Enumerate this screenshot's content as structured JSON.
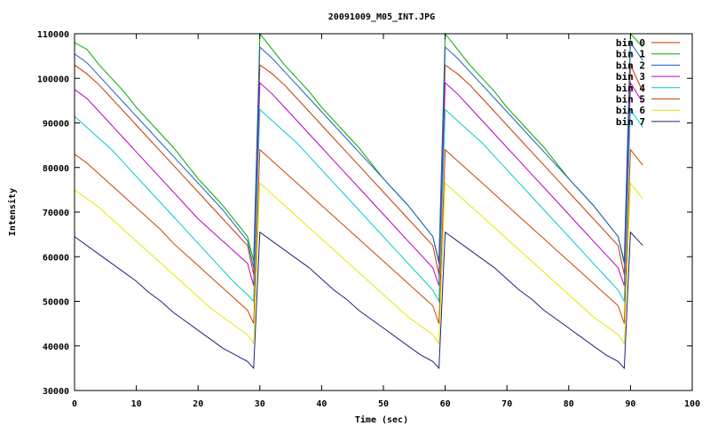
{
  "chart_data": {
    "type": "line",
    "title": "20091009_M05_INT.JPG",
    "xlabel": "Time (sec)",
    "ylabel": "Intensity",
    "xlim": [
      0,
      100
    ],
    "ylim": [
      30000,
      110000
    ],
    "x_ticks": [
      0,
      10,
      20,
      30,
      40,
      50,
      60,
      70,
      80,
      90,
      100
    ],
    "y_ticks": [
      30000,
      40000,
      50000,
      60000,
      70000,
      80000,
      90000,
      100000,
      110000
    ],
    "grid": false,
    "legend_position": "top-right",
    "series": [
      {
        "name": "bin 0",
        "color": "#cc3300",
        "x": [
          0,
          2,
          4,
          6,
          8,
          10,
          12,
          14,
          16,
          18,
          20,
          22,
          24,
          26,
          28,
          29,
          30,
          32,
          34,
          36,
          38,
          40,
          42,
          44,
          46,
          48,
          50,
          52,
          54,
          56,
          58,
          59,
          60,
          62,
          64,
          66,
          68,
          70,
          72,
          74,
          76,
          78,
          80,
          82,
          84,
          86,
          88,
          89,
          90,
          92
        ],
        "y": [
          103000,
          101000,
          98500,
          95500,
          92500,
          89500,
          86500,
          83500,
          80500,
          77500,
          74500,
          71500,
          68500,
          65500,
          62500,
          56000,
          103000,
          101000,
          98500,
          95500,
          92500,
          89500,
          86500,
          83500,
          80500,
          77500,
          74500,
          71500,
          68500,
          65500,
          62500,
          56000,
          103000,
          101000,
          98500,
          95500,
          92500,
          89500,
          86500,
          83500,
          80500,
          77500,
          74500,
          71500,
          68500,
          65500,
          62500,
          56000,
          103000,
          97000
        ]
      },
      {
        "name": "bin 1",
        "color": "#00aa00",
        "x": [
          0,
          2,
          4,
          6,
          8,
          10,
          12,
          14,
          16,
          18,
          20,
          22,
          24,
          26,
          28,
          29,
          30,
          32,
          34,
          36,
          38,
          40,
          42,
          44,
          46,
          48,
          50,
          52,
          54,
          56,
          58,
          59,
          60,
          62,
          64,
          66,
          68,
          70,
          72,
          74,
          76,
          78,
          80,
          82,
          84,
          86,
          88,
          89,
          90,
          92
        ],
        "y": [
          108000,
          106500,
          103000,
          100000,
          97000,
          93500,
          90500,
          87500,
          84500,
          81000,
          77500,
          74500,
          71500,
          68000,
          64500,
          59000,
          110000,
          106500,
          103000,
          100000,
          97000,
          93500,
          90500,
          87500,
          84500,
          81000,
          77500,
          74500,
          71500,
          68000,
          64500,
          59000,
          110000,
          106500,
          103000,
          100000,
          97000,
          93500,
          90500,
          87500,
          84500,
          81000,
          77500,
          74500,
          71500,
          68000,
          64500,
          59000,
          110000,
          107000
        ]
      },
      {
        "name": "bin 2",
        "color": "#1f5fc0",
        "x": [
          0,
          2,
          4,
          6,
          8,
          10,
          12,
          14,
          16,
          18,
          20,
          22,
          24,
          26,
          28,
          29,
          30,
          32,
          34,
          36,
          38,
          40,
          42,
          44,
          46,
          48,
          50,
          52,
          54,
          56,
          58,
          59,
          60,
          62,
          64,
          66,
          68,
          70,
          72,
          74,
          76,
          78,
          80,
          82,
          84,
          86,
          88,
          89,
          90,
          92
        ],
        "y": [
          105500,
          103500,
          100500,
          97500,
          94500,
          91500,
          88500,
          85500,
          82500,
          79500,
          76500,
          73500,
          70500,
          67000,
          63500,
          57500,
          107000,
          104500,
          101500,
          98500,
          95500,
          92500,
          89500,
          86500,
          83500,
          80500,
          77500,
          74500,
          71500,
          68000,
          64500,
          58500,
          107000,
          104500,
          101500,
          98500,
          95500,
          92500,
          89500,
          86500,
          83500,
          80500,
          77500,
          74500,
          71500,
          68000,
          64500,
          58500,
          108000,
          104000
        ]
      },
      {
        "name": "bin 3",
        "color": "#bb00bb",
        "x": [
          0,
          2,
          4,
          6,
          8,
          10,
          12,
          14,
          16,
          18,
          20,
          22,
          24,
          26,
          28,
          29,
          30,
          32,
          34,
          36,
          38,
          40,
          42,
          44,
          46,
          48,
          50,
          52,
          54,
          56,
          58,
          59,
          60,
          62,
          64,
          66,
          68,
          70,
          72,
          74,
          76,
          78,
          80,
          82,
          84,
          86,
          88,
          89,
          90,
          92
        ],
        "y": [
          97500,
          95500,
          92500,
          89500,
          86500,
          83500,
          80500,
          77500,
          74500,
          71500,
          68500,
          66000,
          63500,
          61000,
          58500,
          53500,
          99000,
          96500,
          93500,
          90500,
          87500,
          84500,
          81500,
          78500,
          75500,
          72500,
          69500,
          66500,
          63500,
          60500,
          57500,
          53500,
          99000,
          96500,
          93500,
          90500,
          87500,
          84500,
          81500,
          78500,
          75500,
          72500,
          69500,
          66500,
          63500,
          60500,
          57500,
          53500,
          99000,
          94500
        ]
      },
      {
        "name": "bin 4",
        "color": "#00cccc",
        "x": [
          0,
          2,
          4,
          6,
          8,
          10,
          12,
          14,
          16,
          18,
          20,
          22,
          24,
          26,
          28,
          29,
          30,
          32,
          34,
          36,
          38,
          40,
          42,
          44,
          46,
          48,
          50,
          52,
          54,
          56,
          58,
          59,
          60,
          62,
          64,
          66,
          68,
          70,
          72,
          74,
          76,
          78,
          80,
          82,
          84,
          86,
          88,
          89,
          90,
          92
        ],
        "y": [
          91500,
          89000,
          86500,
          84000,
          81000,
          78000,
          75000,
          72000,
          69000,
          66000,
          63000,
          60000,
          57000,
          54000,
          51500,
          50000,
          93000,
          90500,
          88000,
          85500,
          82500,
          79500,
          76500,
          73500,
          70500,
          67500,
          64500,
          61500,
          58500,
          55500,
          52500,
          50000,
          93000,
          90500,
          88000,
          85500,
          82500,
          79500,
          76500,
          73500,
          70500,
          67500,
          64500,
          61500,
          58500,
          55500,
          52500,
          50000,
          93000,
          89000
        ]
      },
      {
        "name": "bin 5",
        "color": "#cc4400",
        "x": [
          0,
          2,
          4,
          6,
          8,
          10,
          12,
          14,
          16,
          18,
          20,
          22,
          24,
          26,
          28,
          29,
          30,
          32,
          34,
          36,
          38,
          40,
          42,
          44,
          46,
          48,
          50,
          52,
          54,
          56,
          58,
          59,
          60,
          62,
          64,
          66,
          68,
          70,
          72,
          74,
          76,
          78,
          80,
          82,
          84,
          86,
          88,
          89,
          90,
          92
        ],
        "y": [
          83000,
          81000,
          78500,
          76000,
          73500,
          71000,
          68500,
          66000,
          63000,
          60500,
          58000,
          55500,
          53000,
          50500,
          48000,
          45000,
          84000,
          81500,
          79000,
          76500,
          74000,
          71500,
          69000,
          66500,
          64000,
          61500,
          59000,
          56500,
          54000,
          51500,
          49000,
          45000,
          84000,
          81500,
          79000,
          76500,
          74000,
          71500,
          69000,
          66500,
          64000,
          61500,
          59000,
          56500,
          54000,
          51500,
          49000,
          45000,
          84000,
          80500
        ]
      },
      {
        "name": "bin 6",
        "color": "#e6e600",
        "x": [
          0,
          2,
          4,
          6,
          8,
          10,
          12,
          14,
          16,
          18,
          20,
          22,
          24,
          26,
          28,
          29,
          30,
          32,
          34,
          36,
          38,
          40,
          42,
          44,
          46,
          48,
          50,
          52,
          54,
          56,
          58,
          59,
          60,
          62,
          64,
          66,
          68,
          70,
          72,
          74,
          76,
          78,
          80,
          82,
          84,
          86,
          88,
          89,
          90,
          92
        ],
        "y": [
          75000,
          73000,
          71000,
          68500,
          66000,
          63500,
          61000,
          58500,
          56000,
          53500,
          51000,
          48500,
          46500,
          44500,
          42500,
          40500,
          76500,
          74000,
          71500,
          69000,
          66500,
          64000,
          61500,
          59000,
          56500,
          54000,
          51500,
          49000,
          46500,
          44500,
          42500,
          40500,
          76500,
          74000,
          71500,
          69000,
          66500,
          64000,
          61500,
          59000,
          56500,
          54000,
          51500,
          49000,
          46500,
          44500,
          42500,
          40500,
          76500,
          73000
        ]
      },
      {
        "name": "bin 7",
        "color": "#1a237e",
        "x": [
          0,
          2,
          4,
          6,
          8,
          10,
          12,
          14,
          16,
          18,
          20,
          22,
          24,
          26,
          28,
          29,
          30,
          32,
          34,
          36,
          38,
          40,
          42,
          44,
          46,
          48,
          50,
          52,
          54,
          56,
          58,
          59,
          60,
          62,
          64,
          66,
          68,
          70,
          72,
          74,
          76,
          78,
          80,
          82,
          84,
          86,
          88,
          89,
          90,
          92
        ],
        "y": [
          64500,
          62500,
          60500,
          58500,
          56500,
          54500,
          52000,
          50000,
          47500,
          45500,
          43500,
          41500,
          39500,
          38000,
          36500,
          35000,
          65500,
          63500,
          61500,
          59500,
          57500,
          55000,
          52500,
          50500,
          48000,
          46000,
          44000,
          42000,
          40000,
          38000,
          36500,
          35000,
          65500,
          63500,
          61500,
          59500,
          57500,
          55000,
          52500,
          50500,
          48000,
          46000,
          44000,
          42000,
          40000,
          38000,
          36500,
          35000,
          65500,
          62500
        ]
      }
    ]
  }
}
